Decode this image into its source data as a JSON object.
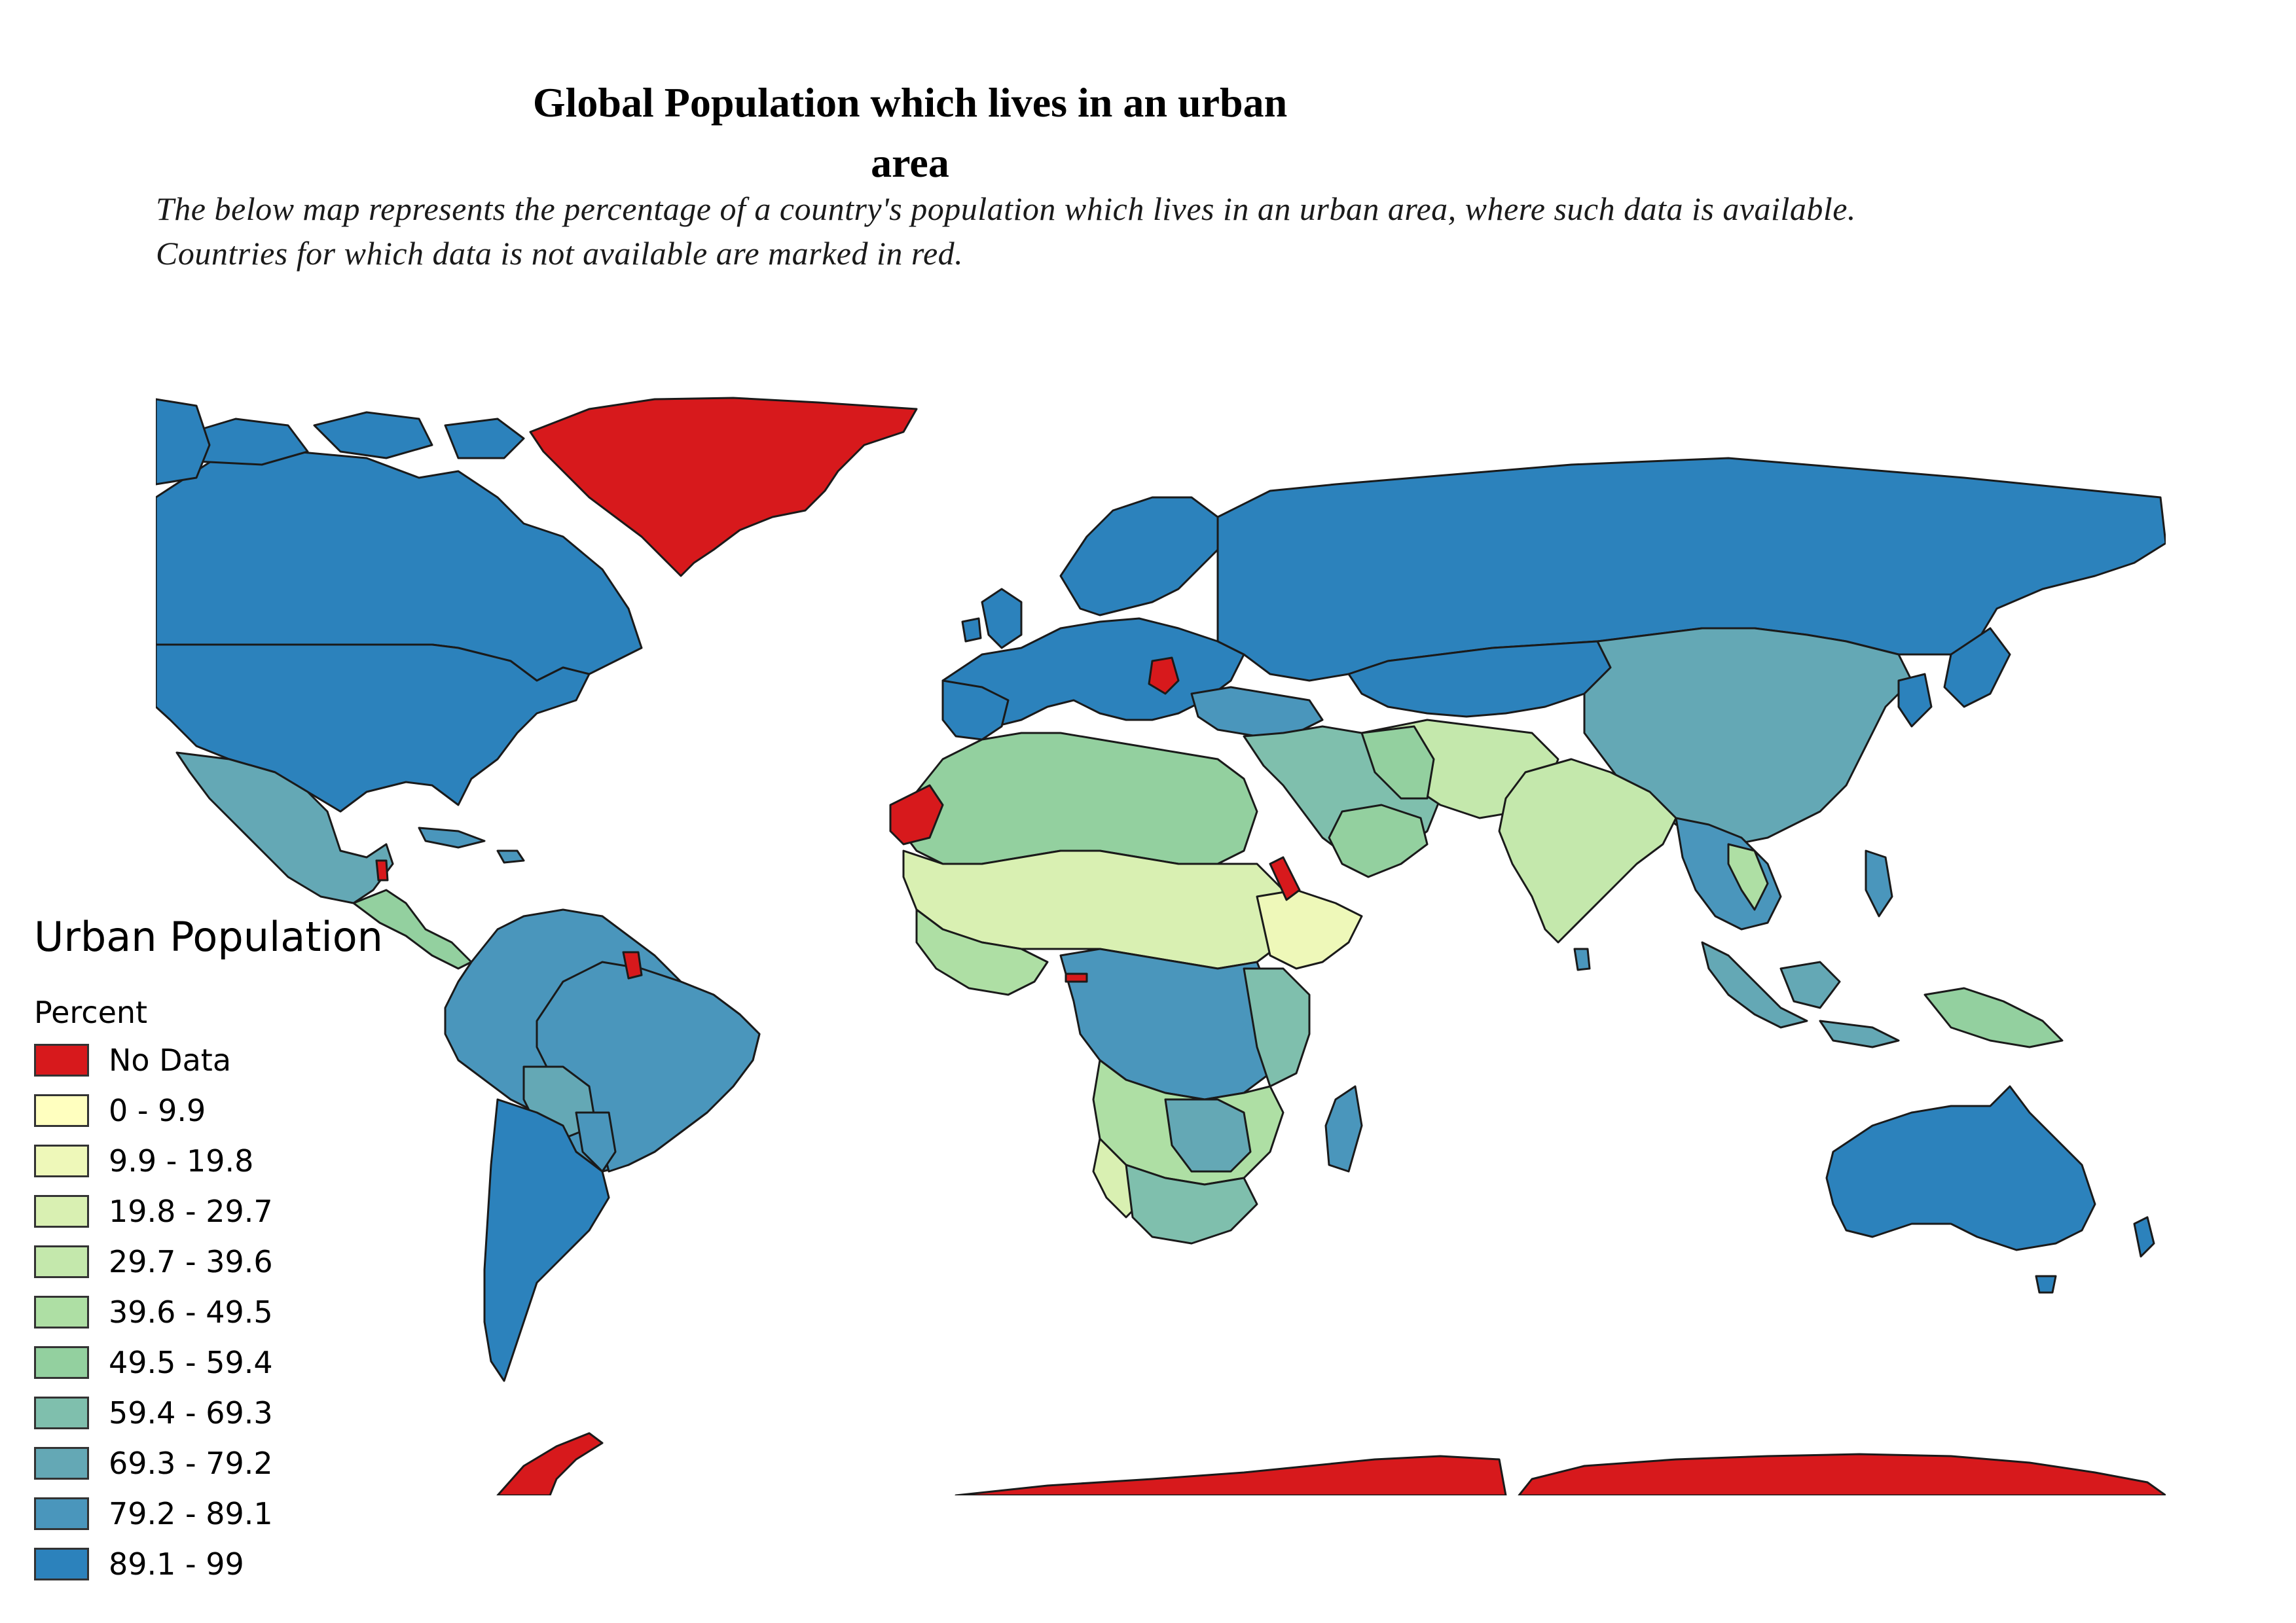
{
  "title_line1": "Global Population which lives in an urban",
  "title_line2": "area",
  "description_line1": "The below map represents the percentage of a country's population which lives in an urban area, where such data is available.",
  "description_line2": "Countries for which data is not available are marked in red.",
  "legend": {
    "title": "Urban Population",
    "subtitle": "Percent",
    "classes": [
      {
        "label": "No Data",
        "color": "#d7191c"
      },
      {
        "label": "0 - 9.9",
        "color": "#ffffbf"
      },
      {
        "label": "9.9 - 19.8",
        "color": "#eef8b9"
      },
      {
        "label": "19.8 - 29.7",
        "color": "#d9f0b2"
      },
      {
        "label": "29.7 - 39.6",
        "color": "#c4e8ac"
      },
      {
        "label": "39.6 - 49.5",
        "color": "#aedfa4"
      },
      {
        "label": "49.5 - 59.4",
        "color": "#93d09f"
      },
      {
        "label": "59.4 - 69.3",
        "color": "#7fbfad"
      },
      {
        "label": "69.3 - 79.2",
        "color": "#64a8b5"
      },
      {
        "label": "79.2 - 89.1",
        "color": "#4a96bc"
      },
      {
        "label": "89.1 - 99",
        "color": "#2c82bc"
      }
    ]
  },
  "map_colors": {
    "ocean": "#ffffff",
    "border": "#1a1a1a",
    "no_data": "#d7191c"
  }
}
